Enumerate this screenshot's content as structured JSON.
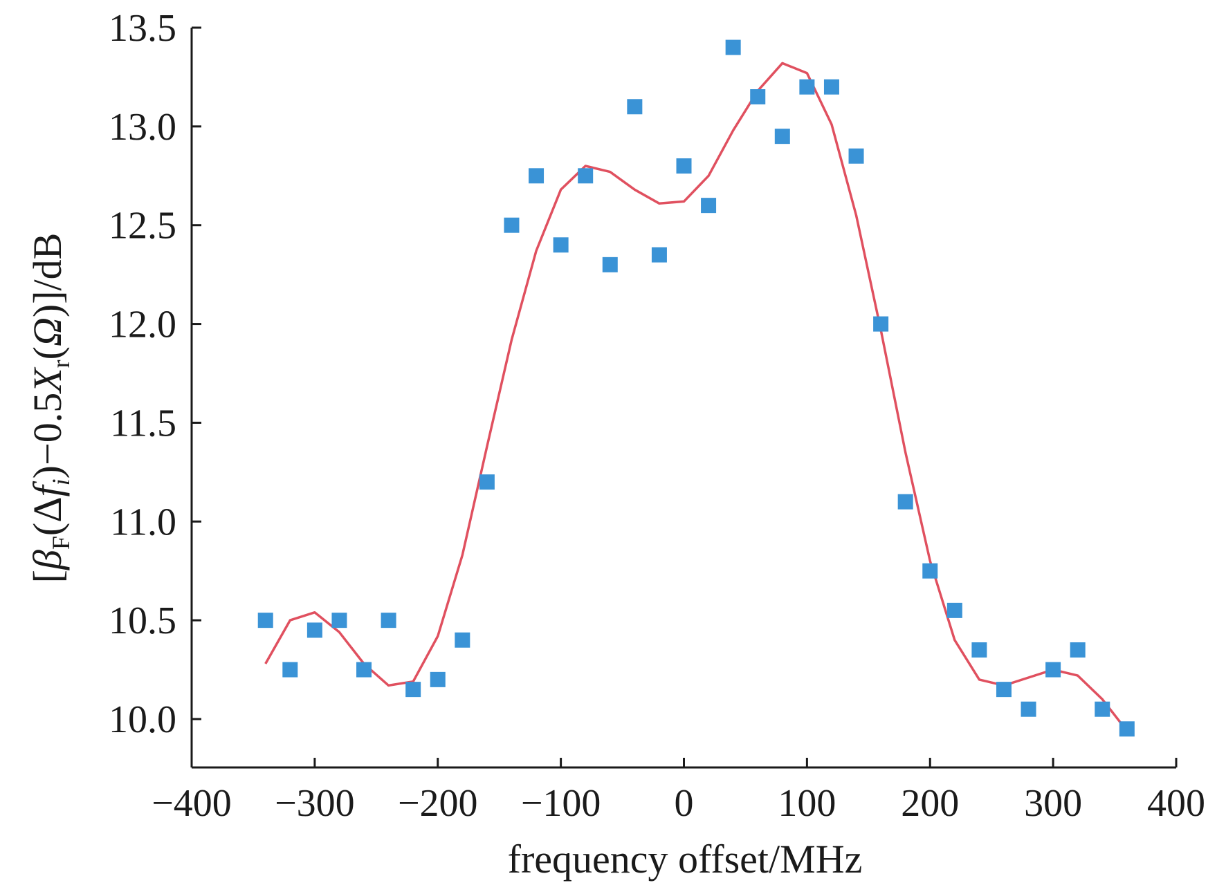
{
  "chart_data": {
    "type": "scatter",
    "title": "",
    "xlabel": "frequency offset/MHz",
    "ylabel_parts": {
      "open": "[",
      "beta": "β",
      "beta_sub": "F",
      "delta_f_open": "(Δ",
      "f": "f",
      "f_sub": "i",
      "mid": ")−0.5",
      "X": "X",
      "X_sub": "r",
      "omega_open": "(",
      "omega": "Ω",
      "close": ")]/dB"
    },
    "xlim": [
      -400,
      400
    ],
    "ylim": [
      9.75,
      13.5
    ],
    "xticks": [
      -400,
      -300,
      -200,
      -100,
      0,
      100,
      200,
      300,
      400
    ],
    "xtick_labels": [
      "−400",
      "−300",
      "−200",
      "−100",
      "0",
      "100",
      "200",
      "300",
      "400"
    ],
    "yticks": [
      10.0,
      10.5,
      11.0,
      11.5,
      12.0,
      12.5,
      13.0,
      13.5
    ],
    "ytick_labels": [
      "10.0",
      "10.5",
      "11.0",
      "11.5",
      "12.0",
      "12.5",
      "13.0",
      "13.5"
    ],
    "grid": false,
    "series": [
      {
        "kind": "scatter",
        "marker": "square",
        "color": "#3a93d6",
        "x": [
          -340,
          -320,
          -300,
          -280,
          -260,
          -240,
          -220,
          -200,
          -180,
          -160,
          -140,
          -120,
          -100,
          -80,
          -60,
          -40,
          -20,
          0,
          20,
          40,
          60,
          80,
          100,
          120,
          140,
          160,
          180,
          200,
          220,
          240,
          260,
          280,
          300,
          320,
          340,
          360
        ],
        "y": [
          10.5,
          10.25,
          10.45,
          10.5,
          10.25,
          10.5,
          10.15,
          10.2,
          10.4,
          11.2,
          12.5,
          12.75,
          12.4,
          12.75,
          12.3,
          13.1,
          12.35,
          12.8,
          12.6,
          13.4,
          13.15,
          12.95,
          13.2,
          13.2,
          12.85,
          12.0,
          11.1,
          10.75,
          10.55,
          10.35,
          10.15,
          10.05,
          10.25,
          10.35,
          10.05,
          9.95
        ]
      },
      {
        "kind": "line",
        "color": "#e0505f",
        "x": [
          -340,
          -320,
          -300,
          -280,
          -260,
          -240,
          -220,
          -200,
          -180,
          -160,
          -140,
          -120,
          -100,
          -80,
          -60,
          -40,
          -20,
          0,
          20,
          40,
          60,
          80,
          100,
          120,
          140,
          160,
          180,
          200,
          220,
          240,
          260,
          280,
          300,
          320,
          340,
          360
        ],
        "y": [
          10.28,
          10.5,
          10.54,
          10.44,
          10.28,
          10.17,
          10.19,
          10.42,
          10.83,
          11.38,
          11.92,
          12.37,
          12.68,
          12.8,
          12.77,
          12.68,
          12.61,
          12.62,
          12.75,
          12.98,
          13.18,
          13.32,
          13.27,
          13.01,
          12.55,
          11.97,
          11.35,
          10.8,
          10.4,
          10.2,
          10.17,
          10.21,
          10.25,
          10.22,
          10.1,
          9.94
        ]
      }
    ]
  }
}
